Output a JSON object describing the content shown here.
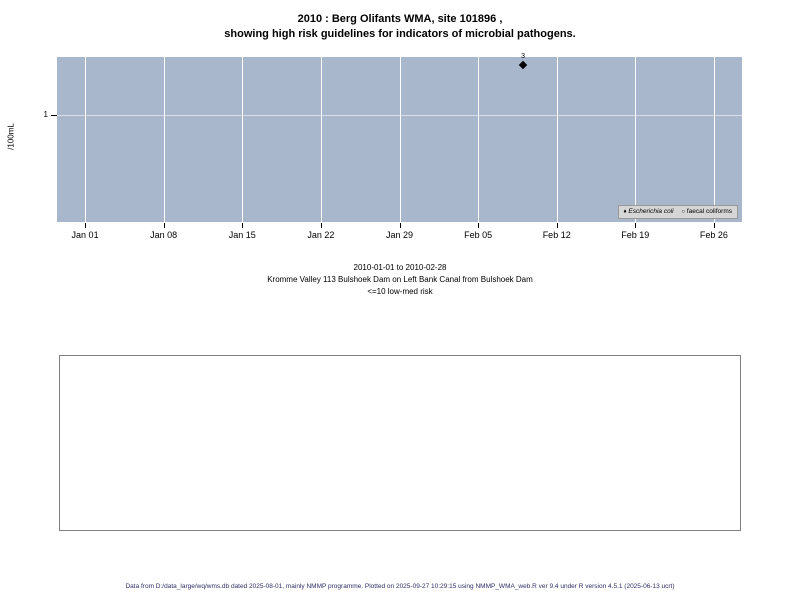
{
  "title": {
    "line1": "2010 : Berg Olifants WMA, site 101896 ,",
    "line2": "showing high risk guidelines for indicators of microbial pathogens."
  },
  "chart_data": {
    "type": "scatter",
    "title": "2010 : Berg Olifants WMA, site 101896 , showing high risk guidelines for indicators of microbial pathogens.",
    "xlabel": "",
    "ylabel": "/100mL",
    "y_scale": "log",
    "y_ticks": [
      "1"
    ],
    "x_ticks": [
      "Jan 01",
      "Jan 08",
      "Jan 15",
      "Jan 22",
      "Jan 29",
      "Feb 05",
      "Feb 12",
      "Feb 19",
      "Feb 26"
    ],
    "x_range": [
      "2010-01-01",
      "2010-02-28"
    ],
    "plot_bg": "#a9b7cd",
    "gridline_color": "#ffffff",
    "grid": "on",
    "legend_position": "bottom-right-inside",
    "series": [
      {
        "name": "Escherichia coli",
        "marker": "filled-diamond",
        "color": "#000000",
        "points": [
          {
            "x": "2010-02-09",
            "y": 3,
            "label": "3"
          }
        ]
      },
      {
        "name": "faecal coliforms",
        "marker": "open-circle",
        "color": "#000000",
        "points": []
      }
    ]
  },
  "legend": {
    "items": [
      {
        "marker": "♦",
        "label": "Escherichia coli"
      },
      {
        "marker": "○",
        "label": "faecal coliforms"
      }
    ]
  },
  "caption": {
    "line1": "2010-01-01 to 2010-02-28",
    "line2": "Kromme Valley 113 Bulshoek Dam on Left Bank Canal from Bulshoek Dam",
    "line3": "<=10 low-med risk"
  },
  "footer": "Data from D:/data_large/wq/wms.db dated 2025-08-01, mainly NMMP programme. Plotted on 2025-09-27 10:29:15 using NMMP_WMA_web.R ver 9.4 under R version 4.5.1 (2025-06-13 ucrt)"
}
